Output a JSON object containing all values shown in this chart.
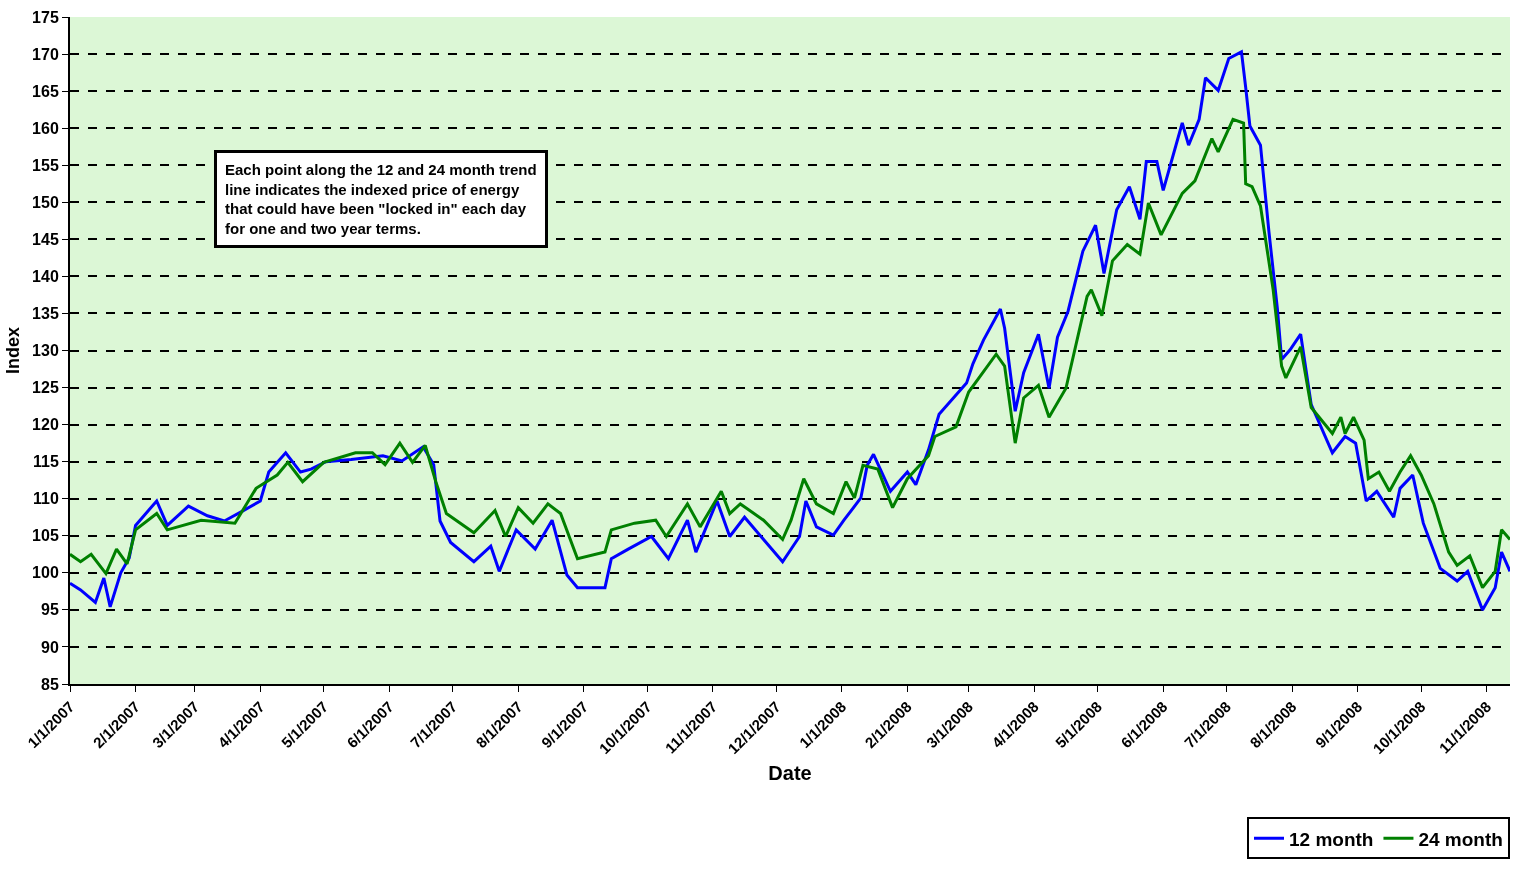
{
  "chart_data": {
    "type": "line",
    "xlabel": "Date",
    "ylabel": "Index",
    "annotations": [
      "Each point along the 12 and 24 month trend\nline indicates the indexed price of energy\nthat could have been \"locked in\" each day\nfor one and two year terms."
    ],
    "xlim": [
      "2007-01-01",
      "2008-11-12"
    ],
    "ylim": [
      85,
      175
    ],
    "yticks": [
      85,
      90,
      95,
      100,
      105,
      110,
      115,
      120,
      125,
      130,
      135,
      140,
      145,
      150,
      155,
      160,
      165,
      170,
      175
    ],
    "xticks": [
      {
        "value": "2007-01-01",
        "label": "1/1/2007"
      },
      {
        "value": "2007-02-01",
        "label": "2/1/2007"
      },
      {
        "value": "2007-03-01",
        "label": "3/1/2007"
      },
      {
        "value": "2007-04-01",
        "label": "4/1/2007"
      },
      {
        "value": "2007-05-01",
        "label": "5/1/2007"
      },
      {
        "value": "2007-06-01",
        "label": "6/1/2007"
      },
      {
        "value": "2007-07-01",
        "label": "7/1/2007"
      },
      {
        "value": "2007-08-01",
        "label": "8/1/2007"
      },
      {
        "value": "2007-09-01",
        "label": "9/1/2007"
      },
      {
        "value": "2007-10-01",
        "label": "10/1/2007"
      },
      {
        "value": "2007-11-01",
        "label": "11/1/2007"
      },
      {
        "value": "2007-12-01",
        "label": "12/1/2007"
      },
      {
        "value": "2008-01-01",
        "label": "1/1/2008"
      },
      {
        "value": "2008-02-01",
        "label": "2/1/2008"
      },
      {
        "value": "2008-03-01",
        "label": "3/1/2008"
      },
      {
        "value": "2008-04-01",
        "label": "4/1/2008"
      },
      {
        "value": "2008-05-01",
        "label": "5/1/2008"
      },
      {
        "value": "2008-06-01",
        "label": "6/1/2008"
      },
      {
        "value": "2008-07-01",
        "label": "7/1/2008"
      },
      {
        "value": "2008-08-01",
        "label": "8/1/2008"
      },
      {
        "value": "2008-09-01",
        "label": "9/1/2008"
      },
      {
        "value": "2008-10-01",
        "label": "10/1/2008"
      },
      {
        "value": "2008-11-01",
        "label": "11/1/2008"
      }
    ],
    "grid": "y",
    "legend": "bottom right",
    "line_style": "solid",
    "series": [
      {
        "name": "12 month",
        "color": "#0000ff",
        "x": [
          "2007-01-01",
          "2007-01-06",
          "2007-01-13",
          "2007-01-17",
          "2007-01-20",
          "2007-01-25",
          "2007-01-29",
          "2007-02-01",
          "2007-02-11",
          "2007-02-16",
          "2007-02-26",
          "2007-03-07",
          "2007-03-15",
          "2007-03-24",
          "2007-04-01",
          "2007-04-05",
          "2007-04-13",
          "2007-04-20",
          "2007-04-25",
          "2007-05-02",
          "2007-05-14",
          "2007-05-29",
          "2007-06-07",
          "2007-06-17",
          "2007-06-22",
          "2007-06-25",
          "2007-06-30",
          "2007-07-11",
          "2007-07-19",
          "2007-07-23",
          "2007-07-31",
          "2007-08-09",
          "2007-08-17",
          "2007-08-24",
          "2007-08-29",
          "2007-09-11",
          "2007-09-14",
          "2007-09-22",
          "2007-10-03",
          "2007-10-11",
          "2007-10-20",
          "2007-10-24",
          "2007-11-03",
          "2007-11-09",
          "2007-11-16",
          "2007-11-25",
          "2007-12-04",
          "2007-12-12",
          "2007-12-15",
          "2007-12-20",
          "2007-12-28",
          "2008-01-02",
          "2008-01-10",
          "2008-01-13",
          "2008-01-16",
          "2008-01-24",
          "2008-02-01",
          "2008-02-05",
          "2008-02-11",
          "2008-02-16",
          "2008-02-29",
          "2008-03-03",
          "2008-03-08",
          "2008-03-16",
          "2008-03-18",
          "2008-03-23",
          "2008-03-27",
          "2008-04-03",
          "2008-04-08",
          "2008-04-12",
          "2008-04-17",
          "2008-04-24",
          "2008-04-30",
          "2008-05-04",
          "2008-05-10",
          "2008-05-16",
          "2008-05-21",
          "2008-05-24",
          "2008-05-29",
          "2008-06-01",
          "2008-06-10",
          "2008-06-13",
          "2008-06-18",
          "2008-06-21",
          "2008-06-27",
          "2008-07-02",
          "2008-07-08",
          "2008-07-10",
          "2008-07-12",
          "2008-07-17",
          "2008-07-21",
          "2008-07-25",
          "2008-07-27",
          "2008-07-31",
          "2008-08-05",
          "2008-08-10",
          "2008-08-20",
          "2008-08-26",
          "2008-08-31",
          "2008-09-05",
          "2008-09-10",
          "2008-09-18",
          "2008-09-21",
          "2008-09-27",
          "2008-10-02",
          "2008-10-10",
          "2008-10-18",
          "2008-10-23",
          "2008-10-30",
          "2008-11-05",
          "2008-11-08",
          "2008-11-12"
        ],
        "values": [
          98.6,
          97.7,
          96,
          99.3,
          95.4,
          100,
          102,
          106.4,
          109.7,
          106.4,
          109,
          107.7,
          107,
          108.4,
          109.7,
          113.6,
          116.2,
          113.6,
          114,
          115,
          115.3,
          115.8,
          115.1,
          117,
          114.6,
          107,
          104.1,
          101.5,
          103.6,
          100.2,
          105.8,
          103.2,
          107.1,
          99.7,
          98,
          98,
          101.9,
          103.2,
          104.9,
          101.9,
          107.1,
          102.8,
          109.7,
          104.9,
          107.5,
          104.5,
          101.5,
          104.9,
          109.7,
          106.2,
          105.1,
          107.1,
          110.1,
          114.5,
          116,
          111,
          113.6,
          111.9,
          116.6,
          121.4,
          125.6,
          128.2,
          131.4,
          135.6,
          133,
          121.8,
          127,
          132.2,
          124.9,
          131.8,
          135.3,
          143.4,
          146.9,
          140.4,
          149,
          152.1,
          147.7,
          155.5,
          155.5,
          151.6,
          160.7,
          157.7,
          161.2,
          166.8,
          165.1,
          169.4,
          170.3,
          165.5,
          160.3,
          157.7,
          146,
          135.6,
          128.8,
          130.1,
          132.2,
          122.7,
          116.2,
          118.4,
          117.5,
          109.7,
          111,
          107.5,
          111.4,
          113.2,
          106.7,
          100.6,
          98.9,
          100.2,
          95,
          98,
          102.8,
          100.2
        ]
      },
      {
        "name": "24 month",
        "color": "#008000",
        "x": [
          "2007-01-01",
          "2007-01-06",
          "2007-01-11",
          "2007-01-18",
          "2007-01-23",
          "2007-01-28",
          "2007-02-01",
          "2007-02-11",
          "2007-02-16",
          "2007-03-04",
          "2007-03-20",
          "2007-03-30",
          "2007-04-09",
          "2007-04-14",
          "2007-04-21",
          "2007-05-01",
          "2007-05-16",
          "2007-05-24",
          "2007-05-30",
          "2007-06-06",
          "2007-06-12",
          "2007-06-18",
          "2007-06-23",
          "2007-06-28",
          "2007-07-11",
          "2007-07-21",
          "2007-07-26",
          "2007-08-01",
          "2007-08-08",
          "2007-08-15",
          "2007-08-21",
          "2007-08-29",
          "2007-09-11",
          "2007-09-14",
          "2007-09-25",
          "2007-10-05",
          "2007-10-10",
          "2007-10-20",
          "2007-10-26",
          "2007-11-05",
          "2007-11-09",
          "2007-11-14",
          "2007-11-25",
          "2007-12-04",
          "2007-12-08",
          "2007-12-14",
          "2007-12-20",
          "2007-12-28",
          "2008-01-03",
          "2008-01-07",
          "2008-01-11",
          "2008-01-18",
          "2008-01-25",
          "2008-02-01",
          "2008-02-11",
          "2008-02-14",
          "2008-02-24",
          "2008-03-01",
          "2008-03-14",
          "2008-03-18",
          "2008-03-23",
          "2008-03-27",
          "2008-04-03",
          "2008-04-08",
          "2008-04-16",
          "2008-04-26",
          "2008-04-28",
          "2008-05-03",
          "2008-05-08",
          "2008-05-15",
          "2008-05-21",
          "2008-05-25",
          "2008-05-31",
          "2008-06-10",
          "2008-06-16",
          "2008-06-24",
          "2008-06-27",
          "2008-07-04",
          "2008-07-09",
          "2008-07-10",
          "2008-07-13",
          "2008-07-17",
          "2008-07-23",
          "2008-07-27",
          "2008-07-29",
          "2008-08-05",
          "2008-08-10",
          "2008-08-20",
          "2008-08-24",
          "2008-08-26",
          "2008-08-30",
          "2008-09-04",
          "2008-09-06",
          "2008-09-11",
          "2008-09-16",
          "2008-09-21",
          "2008-09-26",
          "2008-10-01",
          "2008-10-07",
          "2008-10-14",
          "2008-10-18",
          "2008-10-24",
          "2008-10-30",
          "2008-11-05",
          "2008-11-08",
          "2008-11-12"
        ],
        "values": [
          102.5,
          101.5,
          102.5,
          99.9,
          103.2,
          101.2,
          105.8,
          108,
          105.8,
          107.1,
          106.7,
          111.4,
          113.2,
          114.9,
          112.3,
          114.9,
          116.2,
          116.2,
          114.6,
          117.5,
          114.9,
          117.2,
          112.3,
          108,
          105.4,
          108.4,
          104.9,
          108.8,
          106.7,
          109.3,
          108,
          101.9,
          102.8,
          105.8,
          106.7,
          107.1,
          104.9,
          109.3,
          106.2,
          111,
          108,
          109.3,
          107.1,
          104.5,
          107.1,
          112.7,
          109.3,
          108,
          112.3,
          110.1,
          114.5,
          114,
          108.8,
          112.7,
          115.8,
          118.4,
          119.7,
          124.4,
          129.5,
          127.9,
          117.5,
          123.6,
          125.3,
          121,
          124.9,
          137.3,
          138.2,
          134.7,
          142.1,
          144.3,
          143,
          149.9,
          145.6,
          151.2,
          152.9,
          158.6,
          156.8,
          161.2,
          160.7,
          152.5,
          152.1,
          149.5,
          138.2,
          127.9,
          126.3,
          130.5,
          122.3,
          118.8,
          121,
          118.8,
          121,
          117.9,
          112.7,
          113.6,
          111,
          113.6,
          115.8,
          113.2,
          109.3,
          102.8,
          101,
          102.3,
          98,
          100.2,
          105.8,
          104.5
        ]
      }
    ]
  }
}
